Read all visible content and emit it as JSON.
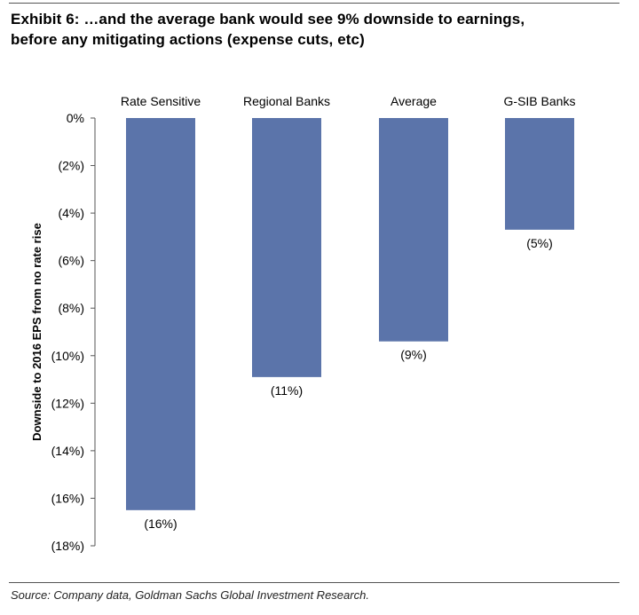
{
  "title": {
    "line1": "Exhibit 6: …and the average bank would see 9% downside to earnings,",
    "line2": "before any mitigating actions (expense cuts, etc)"
  },
  "source": "Source: Company data, Goldman Sachs Global Investment Research.",
  "colors": {
    "bar": "#5b74aa",
    "axis": "#555555",
    "text": "#000000"
  },
  "chart_data": {
    "type": "bar",
    "categories": [
      "Rate Sensitive",
      "Regional Banks",
      "Average",
      "G-SIB Banks"
    ],
    "values": [
      -16.5,
      -10.9,
      -9.4,
      -4.7
    ],
    "data_labels": [
      "(16%)",
      "(11%)",
      "(9%)",
      "(5%)"
    ],
    "ylabel": "Downside to 2016 EPS from no rate rise",
    "ylim": [
      -18,
      0
    ],
    "yticks": [
      0,
      -2,
      -4,
      -6,
      -8,
      -10,
      -12,
      -14,
      -16,
      -18
    ],
    "ytick_labels": [
      "0%",
      "(2%)",
      "(4%)",
      "(6%)",
      "(8%)",
      "(10%)",
      "(12%)",
      "(14%)",
      "(16%)",
      "(18%)"
    ],
    "category_labels_position": "top",
    "grid": false,
    "legend": "none"
  }
}
